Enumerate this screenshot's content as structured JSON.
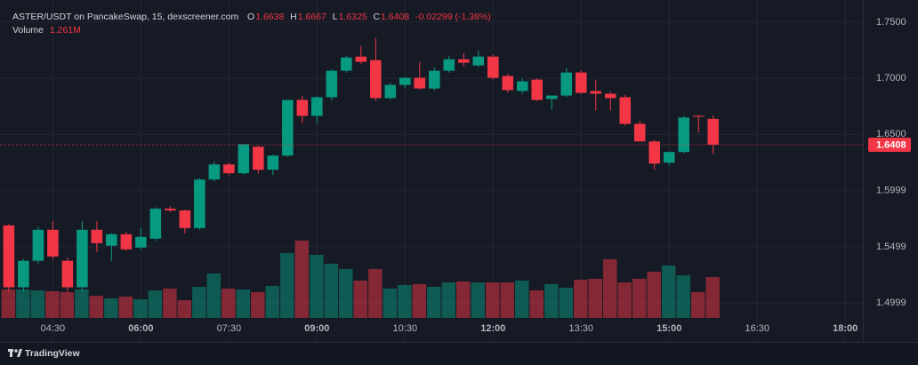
{
  "chart_data": {
    "type": "candlestick",
    "title": "ASTER/USDT on PancakeSwap, 15, dexscreener.com",
    "legend": {
      "open_label": "O",
      "high_label": "H",
      "low_label": "L",
      "close_label": "C",
      "change": "-0.02299 (-1.38%)",
      "volume_label": "Volume",
      "volume_value": "1.261M"
    },
    "brand": "TradingView",
    "x": [
      "03:45",
      "04:00",
      "04:15",
      "04:30",
      "04:45",
      "05:00",
      "05:15",
      "05:30",
      "05:45",
      "06:00",
      "06:15",
      "06:30",
      "06:45",
      "07:00",
      "07:15",
      "07:30",
      "07:45",
      "08:00",
      "08:15",
      "08:30",
      "08:45",
      "09:00",
      "09:15",
      "09:30",
      "09:45",
      "10:00",
      "10:15",
      "10:30",
      "10:45",
      "11:00",
      "11:15",
      "11:30",
      "11:45",
      "12:00",
      "12:15",
      "12:30",
      "12:45",
      "13:00",
      "13:15",
      "13:30",
      "13:45",
      "14:00",
      "14:15",
      "14:30",
      "14:45",
      "15:00",
      "15:15",
      "15:30",
      "15:45"
    ],
    "open": [
      1.5689,
      1.5138,
      1.5374,
      1.565,
      1.5374,
      1.5138,
      1.565,
      1.5508,
      1.5611,
      1.5492,
      1.5571,
      1.5839,
      1.5823,
      1.5665,
      1.6098,
      1.6232,
      1.6154,
      1.639,
      1.6185,
      1.6311,
      1.6807,
      1.6665,
      1.6831,
      1.7067,
      1.7193,
      1.7161,
      1.6823,
      1.6941,
      1.7004,
      1.6909,
      1.7067,
      1.7169,
      1.7114,
      1.7193,
      1.702,
      1.6886,
      1.6988,
      1.6815,
      1.6846,
      1.7051,
      1.6886,
      1.6862,
      1.6831,
      1.6594,
      1.6437,
      1.6248,
      1.6343,
      1.6665,
      1.6638
    ],
    "high": [
      1.57,
      1.539,
      1.568,
      1.5728,
      1.54,
      1.5728,
      1.5728,
      1.562,
      1.563,
      1.5665,
      1.585,
      1.5862,
      1.583,
      1.611,
      1.6256,
      1.625,
      1.6413,
      1.64,
      1.632,
      1.6807,
      1.6846,
      1.684,
      1.708,
      1.72,
      1.7287,
      1.7358,
      1.696,
      1.701,
      1.7146,
      1.71,
      1.72,
      1.7224,
      1.7248,
      1.721,
      1.704,
      1.7,
      1.7,
      1.6846,
      1.7091,
      1.707,
      1.6988,
      1.688,
      1.685,
      1.662,
      1.645,
      1.635,
      1.6665,
      1.6673,
      1.6667
    ],
    "low": [
      1.5098,
      1.5098,
      1.535,
      1.539,
      1.5098,
      1.51,
      1.5453,
      1.5374,
      1.546,
      1.547,
      1.555,
      1.5807,
      1.5618,
      1.565,
      1.608,
      1.6138,
      1.614,
      1.615,
      1.6138,
      1.63,
      1.66,
      1.66,
      1.68,
      1.705,
      1.713,
      1.68,
      1.681,
      1.6909,
      1.69,
      1.689,
      1.705,
      1.7106,
      1.71,
      1.6988,
      1.687,
      1.686,
      1.68,
      1.672,
      1.683,
      1.686,
      1.6713,
      1.6713,
      1.658,
      1.6437,
      1.6185,
      1.622,
      1.633,
      1.6516,
      1.6325
    ],
    "close": [
      1.5138,
      1.5374,
      1.565,
      1.5413,
      1.5138,
      1.565,
      1.5531,
      1.5611,
      1.5476,
      1.5587,
      1.5839,
      1.5823,
      1.5665,
      1.6098,
      1.6232,
      1.6154,
      1.6413,
      1.6185,
      1.6311,
      1.6807,
      1.6665,
      1.6831,
      1.7067,
      1.7185,
      1.7146,
      1.6823,
      1.6941,
      1.7004,
      1.6909,
      1.7067,
      1.7169,
      1.7138,
      1.7193,
      1.7004,
      1.6894,
      1.6972,
      1.6807,
      1.6846,
      1.7051,
      1.687,
      1.6862,
      1.6823,
      1.6594,
      1.6437,
      1.624,
      1.6343,
      1.665,
      1.6657,
      1.6408
    ],
    "volume": [
      877000,
      877000,
      850000,
      822000,
      795000,
      877000,
      685000,
      603000,
      658000,
      576000,
      850000,
      905000,
      548000,
      959000,
      1370000,
      905000,
      877000,
      795000,
      987000,
      2000000,
      2385000,
      1946000,
      1672000,
      1508000,
      1151000,
      1508000,
      905000,
      1014000,
      1042000,
      959000,
      1096000,
      1124000,
      1096000,
      1096000,
      1096000,
      1151000,
      850000,
      1042000,
      932000,
      1179000,
      1206000,
      1809000,
      1096000,
      1206000,
      1425000,
      1617000,
      1316000,
      795000,
      1261000
    ],
    "up_color": "#089981",
    "down_color": "#f23645",
    "ylim": [
      1.4865,
      1.7697
    ],
    "yticks": [
      1.4999,
      1.5499,
      1.5999,
      {
        "value": 1.65,
        "label": "1.6500"
      },
      {
        "value": 1.7,
        "label": "1.7000"
      },
      {
        "value": 1.75,
        "label": "1.7500"
      }
    ],
    "xlim": [
      "03:36",
      "18:18"
    ],
    "xticks": [
      "04:30",
      "06:00",
      "07:30",
      "09:00",
      "10:30",
      "12:00",
      "13:30",
      "15:00",
      "16:30",
      "18:00"
    ],
    "volume_lim": [
      0,
      9800000
    ],
    "grid": true
  }
}
